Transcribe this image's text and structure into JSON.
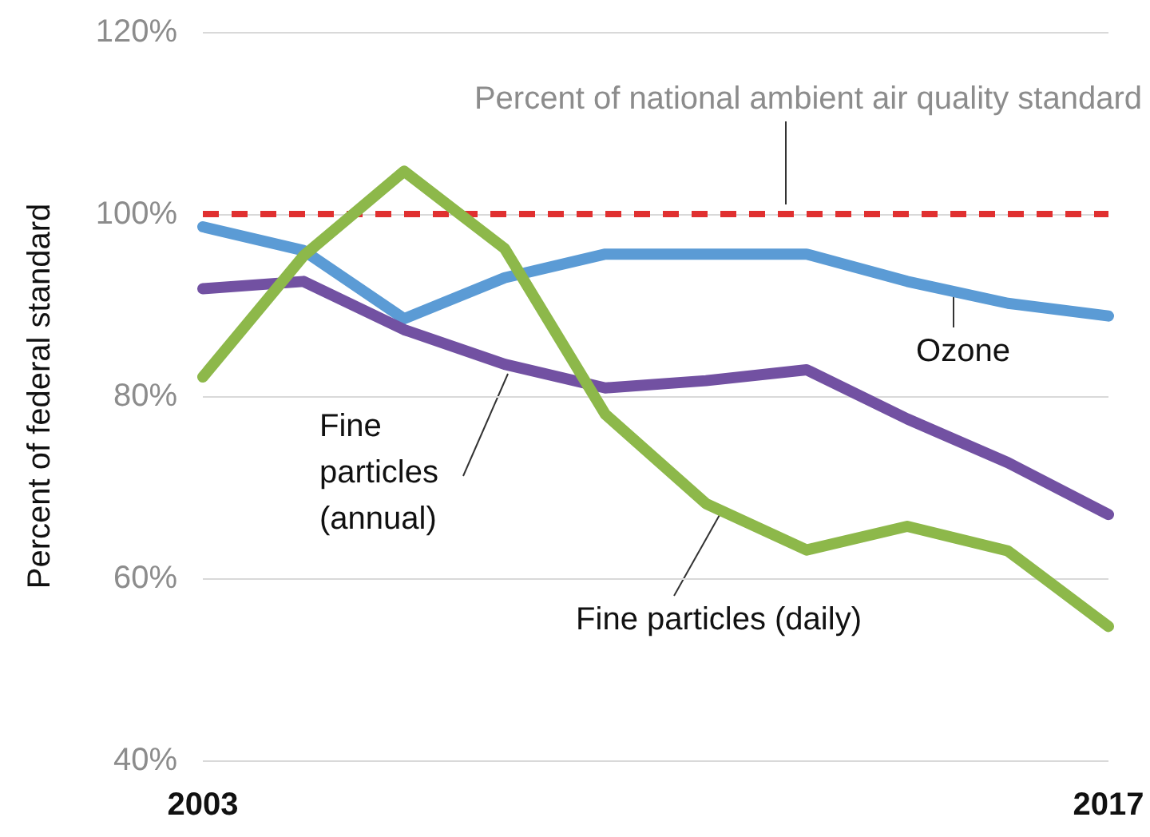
{
  "chart_data": {
    "type": "line",
    "ylabel": "Percent of federal standard",
    "categories": [
      "2003",
      null,
      null,
      null,
      null,
      null,
      null,
      null,
      null,
      "2017"
    ],
    "ylim": [
      40,
      120
    ],
    "yticks": [
      {
        "value": 40,
        "label": "40%"
      },
      {
        "value": 60,
        "label": "60%"
      },
      {
        "value": 80,
        "label": "80%"
      },
      {
        "value": 100,
        "label": "100%"
      },
      {
        "value": 120,
        "label": "120%"
      }
    ],
    "grid": "y",
    "legend": false,
    "marker": "none",
    "line_style": "solid",
    "ref_lines": [
      {
        "axis": "y",
        "value": 100,
        "label": "Percent of national ambient air quality standard",
        "color": "#e03030",
        "line_style": "dashed"
      }
    ],
    "series": [
      {
        "name": "Ozone",
        "color": "#5b9bd5",
        "values": [
          98.6,
          96,
          88.5,
          93,
          95.6,
          95.6,
          95.6,
          92.6,
          90.2,
          88.8
        ]
      },
      {
        "name": "Fine particles (annual)",
        "color": "#7251a2",
        "values": [
          91.8,
          92.6,
          87.3,
          83.5,
          80.9,
          81.7,
          82.9,
          77.5,
          72.7,
          67
        ]
      },
      {
        "name": "Fine particles (daily)",
        "color": "#8db84a",
        "values": [
          82.1,
          95.4,
          104.7,
          96.2,
          78,
          68.2,
          63.1,
          65.7,
          63,
          54.7
        ]
      }
    ]
  }
}
